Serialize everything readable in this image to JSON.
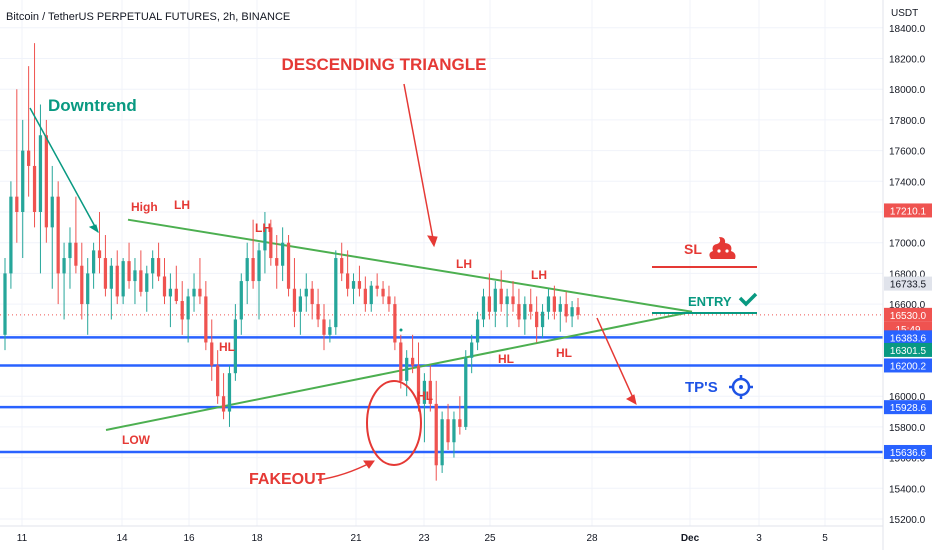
{
  "header": {
    "title": "Bitcoin / TetherUS PERPETUAL FUTURES, 2h, BINANCE",
    "currency": "USDT"
  },
  "colors": {
    "up": "#26a69a",
    "down": "#ef5350",
    "trend": "#4caf50",
    "level": "#2962ff",
    "annotation": "#e53935",
    "green_text": "#089981",
    "blue_text": "#1e53e5"
  },
  "chart_data": {
    "type": "candlestick",
    "title": "Bitcoin / TetherUS PERPETUAL FUTURES, 2h, BINANCE",
    "x_ticks": [
      "11",
      "14",
      "16",
      "18",
      "21",
      "23",
      "25",
      "28",
      "Dec",
      "3",
      "5"
    ],
    "y_ticks": [
      15200.0,
      15400.0,
      15600.0,
      15800.0,
      16000.0,
      16200.0,
      16400.0,
      16600.0,
      16800.0,
      17000.0,
      17200.0,
      17400.0,
      17600.0,
      17800.0,
      18000.0,
      18200.0,
      18400.0
    ],
    "ylim": [
      15100,
      18600
    ],
    "price_labels": [
      {
        "text": "17210.1",
        "value": 17210.1,
        "color": "#ef5350"
      },
      {
        "text": "16733.5",
        "value": 16733.5,
        "color": "#787b86"
      },
      {
        "text": "16530.0",
        "value": 16530.0,
        "color": "#ef5350"
      },
      {
        "text": "15:49",
        "value": 16530.0,
        "color": "#ef5350"
      },
      {
        "text": "16383.6",
        "value": 16383.6,
        "color": "#2962ff"
      },
      {
        "text": "16301.5",
        "value": 16301.5,
        "color": "#089981"
      },
      {
        "text": "16200.2",
        "value": 16200.2,
        "color": "#2962ff"
      },
      {
        "text": "15928.6",
        "value": 15928.6,
        "color": "#2962ff"
      },
      {
        "text": "15636.6",
        "value": 15636.6,
        "color": "#2962ff"
      }
    ],
    "levels": [
      16383.6,
      16200.2,
      15928.6,
      15636.6
    ],
    "last_price": 16530.0,
    "candles_ohlc": [
      [
        16400,
        16900,
        16300,
        16800
      ],
      [
        16800,
        17400,
        16700,
        17300
      ],
      [
        17300,
        18000,
        17000,
        17200
      ],
      [
        17200,
        17800,
        16900,
        17600
      ],
      [
        17600,
        18150,
        17300,
        17500
      ],
      [
        17500,
        18300,
        17100,
        17200
      ],
      [
        17200,
        17900,
        16800,
        17700
      ],
      [
        17700,
        17800,
        17000,
        17100
      ],
      [
        17100,
        17500,
        16700,
        17300
      ],
      [
        17300,
        17400,
        16600,
        16800
      ],
      [
        16800,
        17000,
        16500,
        16900
      ],
      [
        16900,
        17100,
        16700,
        17000
      ],
      [
        17000,
        17300,
        16800,
        16850
      ],
      [
        16850,
        17000,
        16500,
        16600
      ],
      [
        16600,
        16900,
        16400,
        16800
      ],
      [
        16800,
        17000,
        16700,
        16950
      ],
      [
        16950,
        17200,
        16800,
        16900
      ],
      [
        16900,
        17050,
        16650,
        16700
      ],
      [
        16700,
        16900,
        16500,
        16850
      ],
      [
        16850,
        16950,
        16600,
        16650
      ],
      [
        16650,
        16900,
        16600,
        16880
      ],
      [
        16880,
        17000,
        16700,
        16750
      ],
      [
        16750,
        16900,
        16600,
        16820
      ],
      [
        16820,
        16950,
        16650,
        16680
      ],
      [
        16680,
        16850,
        16550,
        16800
      ],
      [
        16800,
        16950,
        16700,
        16900
      ],
      [
        16900,
        17000,
        16750,
        16780
      ],
      [
        16780,
        16900,
        16600,
        16650
      ],
      [
        16650,
        16800,
        16450,
        16700
      ],
      [
        16700,
        16850,
        16600,
        16620
      ],
      [
        16620,
        16750,
        16400,
        16500
      ],
      [
        16500,
        16700,
        16350,
        16650
      ],
      [
        16650,
        16800,
        16550,
        16700
      ],
      [
        16700,
        16900,
        16600,
        16650
      ],
      [
        16650,
        16750,
        16300,
        16350
      ],
      [
        16350,
        16500,
        16100,
        16200
      ],
      [
        16200,
        16300,
        15950,
        16000
      ],
      [
        16000,
        16150,
        15850,
        15900
      ],
      [
        15900,
        16200,
        15800,
        16150
      ],
      [
        16150,
        16600,
        16100,
        16500
      ],
      [
        16500,
        16800,
        16400,
        16750
      ],
      [
        16750,
        17000,
        16600,
        16900
      ],
      [
        16900,
        17150,
        16700,
        16750
      ],
      [
        16750,
        17000,
        16500,
        16950
      ],
      [
        16950,
        17200,
        16800,
        17100
      ],
      [
        17100,
        17150,
        16850,
        16900
      ],
      [
        16900,
        17050,
        16700,
        16850
      ],
      [
        16850,
        17100,
        16750,
        17000
      ],
      [
        17000,
        17050,
        16650,
        16700
      ],
      [
        16700,
        16900,
        16450,
        16550
      ],
      [
        16550,
        16700,
        16400,
        16650
      ],
      [
        16650,
        16800,
        16550,
        16700
      ],
      [
        16700,
        16750,
        16500,
        16600
      ],
      [
        16600,
        16700,
        16450,
        16500
      ],
      [
        16500,
        16600,
        16300,
        16400
      ],
      [
        16400,
        16500,
        16350,
        16450
      ],
      [
        16450,
        16950,
        16400,
        16900
      ],
      [
        16900,
        17000,
        16750,
        16800
      ],
      [
        16800,
        16950,
        16650,
        16700
      ],
      [
        16700,
        16800,
        16600,
        16750
      ],
      [
        16750,
        16850,
        16650,
        16700
      ],
      [
        16700,
        16780,
        16550,
        16600
      ],
      [
        16600,
        16750,
        16550,
        16720
      ],
      [
        16720,
        16800,
        16650,
        16700
      ],
      [
        16700,
        16750,
        16600,
        16650
      ],
      [
        16650,
        16720,
        16550,
        16600
      ],
      [
        16600,
        16650,
        16300,
        16350
      ],
      [
        16350,
        16400,
        16050,
        16100
      ],
      [
        16100,
        16300,
        16000,
        16250
      ],
      [
        16250,
        16400,
        16150,
        16200
      ],
      [
        16200,
        16350,
        15900,
        15950
      ],
      [
        15950,
        16150,
        15700,
        16100
      ],
      [
        16100,
        16200,
        15900,
        15950
      ],
      [
        15950,
        16100,
        15450,
        15550
      ],
      [
        15550,
        15900,
        15500,
        15850
      ],
      [
        15850,
        15950,
        15650,
        15700
      ],
      [
        15700,
        15900,
        15600,
        15850
      ],
      [
        15850,
        16000,
        15750,
        15800
      ],
      [
        15800,
        16300,
        15780,
        16250
      ],
      [
        16250,
        16400,
        16150,
        16350
      ],
      [
        16350,
        16550,
        16300,
        16500
      ],
      [
        16500,
        16700,
        16450,
        16650
      ],
      [
        16650,
        16800,
        16500,
        16550
      ],
      [
        16550,
        16750,
        16450,
        16700
      ],
      [
        16700,
        16820,
        16550,
        16600
      ],
      [
        16600,
        16700,
        16450,
        16650
      ],
      [
        16650,
        16750,
        16550,
        16600
      ],
      [
        16600,
        16700,
        16450,
        16500
      ],
      [
        16500,
        16650,
        16400,
        16600
      ],
      [
        16600,
        16700,
        16500,
        16550
      ],
      [
        16550,
        16650,
        16350,
        16450
      ],
      [
        16450,
        16600,
        16380,
        16550
      ],
      [
        16550,
        16700,
        16500,
        16650
      ],
      [
        16650,
        16720,
        16500,
        16550
      ],
      [
        16550,
        16650,
        16420,
        16600
      ],
      [
        16600,
        16680,
        16480,
        16520
      ],
      [
        16520,
        16620,
        16450,
        16580
      ],
      [
        16580,
        16640,
        16500,
        16530
      ]
    ],
    "trendlines": [
      {
        "name": "resistance",
        "from": {
          "candle": 19,
          "price": 17150
        },
        "to": {
          "candle": 104,
          "price": 16550
        }
      },
      {
        "name": "support",
        "from": {
          "candle": 15,
          "price": 15780
        },
        "to": {
          "candle": 104,
          "price": 16550
        }
      }
    ]
  },
  "annotations": {
    "downtrend": "Downtrend",
    "descending_triangle": "DESCENDING TRIANGLE",
    "high": "High",
    "lh_labels": [
      "LH",
      "LH",
      "LH",
      "LH"
    ],
    "hl_labels": [
      "HL",
      "HL",
      "HL",
      "HL"
    ],
    "low": "LOW",
    "fakeout": "FAKEOUT",
    "sl": "SL",
    "entry": "ENTRY",
    "tps": "TP'S",
    "sl_icon": "poop-icon",
    "entry_icon": "check-icon",
    "tp_icon": "target-icon"
  }
}
